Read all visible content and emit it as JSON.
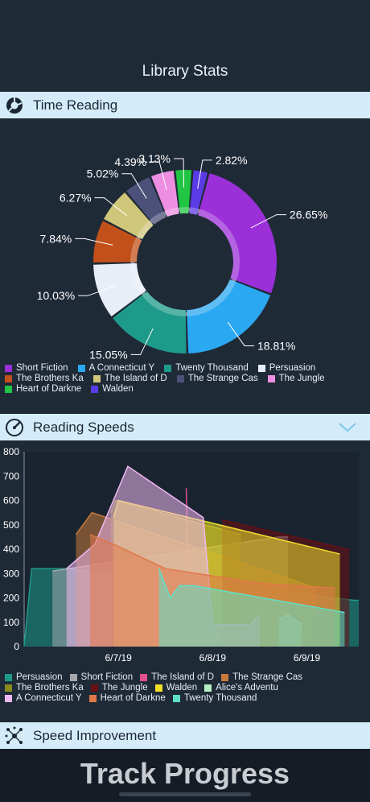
{
  "header": {
    "title": "Library Stats"
  },
  "sections": {
    "time_reading": "Time Reading",
    "reading_speeds": "Reading Speeds",
    "speed_improvement": "Speed Improvement"
  },
  "colors": {
    "Short Fiction": "#9b30d9",
    "A Connecticut Y": "#2ba8f2",
    "Twenty Thousand": "#1e9a8a",
    "Persuasion": "#e7eef7",
    "The Brothers Ka": "#c2501a",
    "The Island of D": "#cfc67a",
    "The Strange Cas": "#4b5178",
    "The Jungle": "#ee8ee3",
    "Heart of Darkne": "#21c443",
    "Walden": "#5a3be6"
  },
  "pie": {
    "slices": [
      {
        "name": "Short Fiction",
        "value": 26.65,
        "label": "26.65%"
      },
      {
        "name": "A Connecticut Y",
        "value": 18.81,
        "label": "18.81%"
      },
      {
        "name": "Twenty Thousand",
        "value": 15.05,
        "label": "15.05%"
      },
      {
        "name": "Persuasion",
        "value": 10.03,
        "label": "10.03%"
      },
      {
        "name": "The Brothers Ka",
        "value": 7.84,
        "label": "7.84%"
      },
      {
        "name": "The Island of D",
        "value": 6.27,
        "label": "6.27%"
      },
      {
        "name": "The Strange Cas",
        "value": 5.02,
        "label": "5.02%"
      },
      {
        "name": "The Jungle",
        "value": 4.39,
        "label": "4.39%"
      },
      {
        "name": "Heart of Darkne",
        "value": 3.13,
        "label": "3.13%"
      },
      {
        "name": "Walden",
        "value": 2.82,
        "label": "2.82%"
      }
    ]
  },
  "chart_data": [
    {
      "type": "pie",
      "title": "Time Reading",
      "categories": [
        "Short Fiction",
        "A Connecticut Y",
        "Twenty Thousand",
        "Persuasion",
        "The Brothers Ka",
        "The Island of D",
        "The Strange Cas",
        "The Jungle",
        "Heart of Darkne",
        "Walden"
      ],
      "values": [
        26.65,
        18.81,
        15.05,
        10.03,
        7.84,
        6.27,
        5.02,
        4.39,
        3.13,
        2.82
      ],
      "legend": "bottom"
    },
    {
      "type": "area",
      "title": "Reading Speeds",
      "x_ticks": [
        "6/7/19",
        "6/8/19",
        "6/9/19"
      ],
      "y_ticks": [
        0,
        100,
        200,
        300,
        400,
        500,
        600,
        700,
        800
      ],
      "ylim": [
        0,
        800
      ],
      "xlim": [
        6.0,
        9.55
      ],
      "legend": "bottom",
      "series": [
        {
          "name": "Persuasion",
          "color": "#1e9a8a",
          "points": [
            [
              6.0,
              0
            ],
            [
              6.08,
              320
            ],
            [
              6.25,
              320
            ],
            [
              6.45,
              320
            ],
            [
              9.5,
              190
            ],
            [
              9.55,
              190
            ]
          ]
        },
        {
          "name": "Short Fiction",
          "color": "#a4a8ad",
          "points": [
            [
              6.3,
              310
            ],
            [
              8.7,
              450
            ],
            [
              8.8,
              450
            ]
          ]
        },
        {
          "name": "The Island of D",
          "color": "#e0508a",
          "points": [
            [
              7.72,
              650
            ],
            [
              7.75,
              80
            ],
            [
              7.8,
              80
            ]
          ]
        },
        {
          "name": "The Strange Cas",
          "color": "#c87a3a",
          "points": [
            [
              6.55,
              460
            ],
            [
              6.72,
              550
            ],
            [
              9.1,
              240
            ]
          ]
        },
        {
          "name": "The Brothers Ka",
          "color": "#8a8a1e",
          "points": [
            [
              6.92,
              550
            ],
            [
              6.97,
              600
            ],
            [
              8.3,
              460
            ]
          ]
        },
        {
          "name": "The Jungle",
          "color": "#6b0f12",
          "points": [
            [
              8.1,
              520
            ],
            [
              9.42,
              400
            ],
            [
              9.45,
              400
            ]
          ]
        },
        {
          "name": "Walden",
          "color": "#f0e02a",
          "points": [
            [
              6.95,
              530
            ],
            [
              7.0,
              600
            ],
            [
              9.35,
              380
            ]
          ]
        },
        {
          "name": "Alice's Adventu",
          "color": "#b8f0c0",
          "points": [
            [
              8.7,
              110
            ],
            [
              8.8,
              130
            ],
            [
              8.95,
              90
            ]
          ]
        },
        {
          "name": "A Connecticut Y",
          "color": "#f0b8f0",
          "points": [
            [
              6.45,
              320
            ],
            [
              6.75,
              420
            ],
            [
              7.1,
              740
            ],
            [
              7.9,
              530
            ],
            [
              8.0,
              90
            ],
            [
              8.4,
              90
            ],
            [
              8.5,
              130
            ]
          ]
        },
        {
          "name": "Heart of Darkne",
          "color": "#e0784a",
          "points": [
            [
              6.7,
              460
            ],
            [
              6.95,
              420
            ],
            [
              7.5,
              320
            ],
            [
              8.5,
              260
            ],
            [
              9.3,
              240
            ]
          ]
        },
        {
          "name": "Twenty Thousand",
          "color": "#5ee0c8",
          "points": [
            [
              7.43,
              320
            ],
            [
              7.55,
              200
            ],
            [
              7.65,
              250
            ],
            [
              7.8,
              250
            ],
            [
              9.4,
              140
            ]
          ]
        }
      ]
    }
  ],
  "speeds_legend": [
    [
      "Persuasion",
      "Short Fiction",
      "The Island of D",
      "The Strange Cas"
    ],
    [
      "The Brothers Ka",
      "The Jungle",
      "Walden",
      "Alice's Adventu"
    ],
    [
      "A Connecticut Y",
      "Heart of Darkne",
      "Twenty Thousand"
    ]
  ],
  "speeds_colors": {
    "Persuasion": "#1e9a8a",
    "Short Fiction": "#a4a8ad",
    "The Island of D": "#e0508a",
    "The Strange Cas": "#c87a3a",
    "The Brothers Ka": "#8a8a1e",
    "The Jungle": "#6b0f12",
    "Walden": "#f0e02a",
    "Alice's Adventu": "#b8f0c0",
    "A Connecticut Y": "#f0b8f0",
    "Heart of Darkne": "#e0784a",
    "Twenty Thousand": "#5ee0c8"
  },
  "footer": {
    "banner": "Track Progress"
  }
}
